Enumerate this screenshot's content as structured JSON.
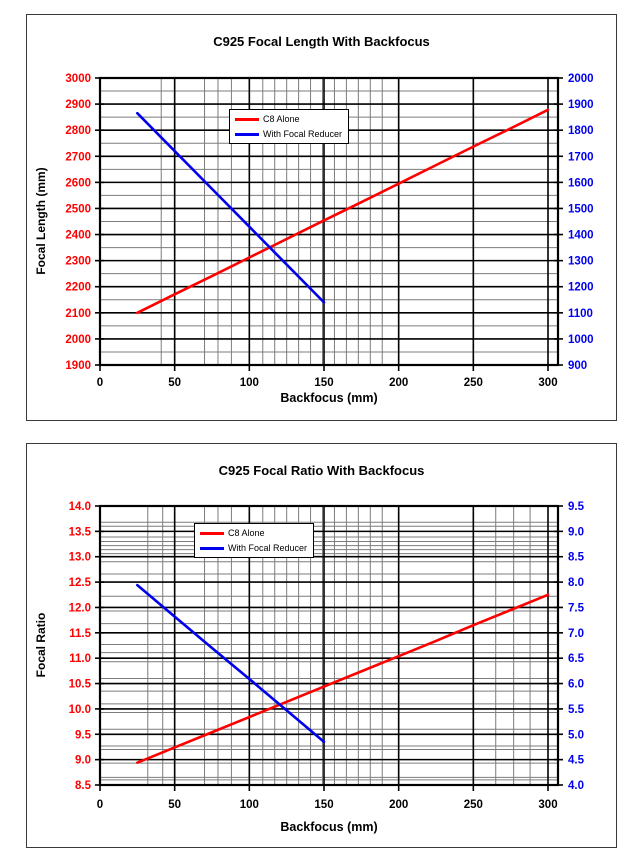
{
  "page": {
    "background_color": "#ffffff",
    "accent_red": "#ff0000",
    "accent_blue": "#0000ee"
  },
  "chart_data": [
    {
      "type": "line",
      "title": "C925 Focal Length With Backfocus",
      "xlabel": "Backfocus (mm)",
      "ylabel": "Focal Length (mm)",
      "grid": "on",
      "legend_position": "upper-center-left",
      "x_axis": {
        "min": 0,
        "max": 300,
        "step": 50,
        "tick_labels": [
          "0",
          "50",
          "100",
          "150",
          "200",
          "250",
          "300"
        ],
        "color": "#000000"
      },
      "left_axis": {
        "min": 1900,
        "max": 3000,
        "step": 100,
        "tick_labels": [
          "3000",
          "2900",
          "2800",
          "2700",
          "2600",
          "2500",
          "2400",
          "2300",
          "2200",
          "2100",
          "2000",
          "1900"
        ],
        "color": "#ff0000"
      },
      "right_axis": {
        "min": 900,
        "max": 2000,
        "step": 100,
        "tick_labels": [
          "2000",
          "1900",
          "1800",
          "1700",
          "1600",
          "1500",
          "1400",
          "1300",
          "1200",
          "1100",
          "1000",
          "900"
        ],
        "color": "#0000ee"
      },
      "series": [
        {
          "name": "C8 Alone",
          "color": "#ff0000",
          "axis": "left",
          "x": [
            25,
            50,
            75,
            100,
            125,
            150,
            175,
            200,
            225,
            250,
            275,
            300
          ],
          "y": [
            2100,
            2171,
            2241,
            2312,
            2383,
            2454,
            2524,
            2595,
            2666,
            2737,
            2807,
            2878
          ]
        },
        {
          "name": "With Focal Reducer",
          "color": "#0000ee",
          "axis": "right",
          "x": [
            25,
            50,
            75,
            100,
            125,
            150
          ],
          "y": [
            1865,
            1720,
            1575,
            1430,
            1285,
            1140
          ]
        }
      ],
      "minor_gridlines": {
        "horizontal_left_values": [
          1950,
          2050,
          2150,
          2250,
          2350,
          2450,
          2550,
          2650,
          2750,
          2850,
          2950
        ],
        "vertical_x_values": [
          41,
          70,
          79,
          88,
          109,
          117,
          125,
          133,
          141,
          149,
          157,
          165,
          173,
          181,
          189
        ]
      }
    },
    {
      "type": "line",
      "title": "C925 Focal Ratio With Backfocus",
      "xlabel": "Backfocus (mm)",
      "ylabel": "Focal Ratio",
      "grid": "on",
      "legend_position": "upper-center-left",
      "x_axis": {
        "min": 0,
        "max": 300,
        "step": 50,
        "tick_labels": [
          "0",
          "50",
          "100",
          "150",
          "200",
          "250",
          "300"
        ],
        "color": "#000000"
      },
      "left_axis": {
        "min": 8.5,
        "max": 14.0,
        "step": 0.5,
        "tick_labels": [
          "14.0",
          "13.5",
          "13.0",
          "12.5",
          "12.0",
          "11.5",
          "11.0",
          "10.5",
          "10.0",
          "9.5",
          "9.0",
          "8.5"
        ],
        "color": "#ff0000"
      },
      "right_axis": {
        "min": 4.0,
        "max": 9.5,
        "step": 0.5,
        "tick_labels": [
          "9.5",
          "9.0",
          "8.5",
          "8.0",
          "7.5",
          "7.0",
          "6.5",
          "6.0",
          "5.5",
          "5.0",
          "4.5",
          "4.0"
        ],
        "color": "#0000ee"
      },
      "series": [
        {
          "name": "C8 Alone",
          "color": "#ff0000",
          "axis": "left",
          "x": [
            25,
            50,
            75,
            100,
            125,
            150,
            175,
            200,
            225,
            250,
            275,
            300
          ],
          "y": [
            8.94,
            9.24,
            9.54,
            9.84,
            10.14,
            10.44,
            10.74,
            11.04,
            11.34,
            11.65,
            11.95,
            12.25
          ]
        },
        {
          "name": "With Focal Reducer",
          "color": "#0000ee",
          "axis": "right",
          "x": [
            25,
            50,
            75,
            100,
            125,
            150
          ],
          "y": [
            7.94,
            7.32,
            6.7,
            6.09,
            5.47,
            4.85
          ]
        }
      ],
      "minor_gridlines": {
        "horizontal_left_values": [
          13.68,
          13.6,
          13.39,
          13.3,
          13.22,
          13.14,
          13.06,
          12.9,
          12.66,
          12.22,
          11.93,
          11.68,
          11.27,
          11.11,
          10.93,
          10.6,
          10.35,
          10.1,
          9.93,
          9.6,
          9.27,
          9.2,
          8.93,
          8.65,
          8.6
        ],
        "vertical_x_values": [
          32,
          42,
          70,
          79,
          88,
          109,
          117,
          125,
          133,
          141,
          149,
          157,
          165,
          173,
          181,
          189,
          265,
          277,
          288
        ]
      }
    }
  ]
}
